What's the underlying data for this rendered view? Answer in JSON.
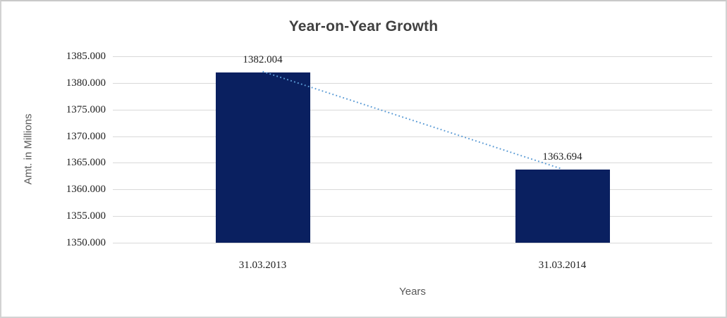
{
  "chart_data": {
    "type": "bar",
    "title": "Year-on-Year Growth",
    "xlabel": "Years",
    "ylabel": "Amt. in Millions",
    "categories": [
      "31.03.2013",
      "31.03.2014"
    ],
    "values": [
      1382.004,
      1363.694
    ],
    "data_labels": [
      "1382.004",
      "1363.694"
    ],
    "y_ticks": [
      1385,
      1380,
      1375,
      1370,
      1365,
      1360,
      1355,
      1350
    ],
    "y_tick_labels": [
      "1385.000",
      "1380.000",
      "1375.000",
      "1370.000",
      "1365.000",
      "1360.000",
      "1355.000",
      "1350.000"
    ],
    "ylim": [
      1350,
      1385
    ],
    "grid": true,
    "legend": "none",
    "trendline": {
      "style": "dotted",
      "from_category": "31.03.2013",
      "to_category": "31.03.2014"
    },
    "colors": {
      "bar": "#0A2060",
      "trendline": "#5B9BD5",
      "gridline": "#D9D9D9",
      "title_text": "#404040",
      "tick_text": "#1F1F1F",
      "axis_title_text": "#595959"
    }
  }
}
